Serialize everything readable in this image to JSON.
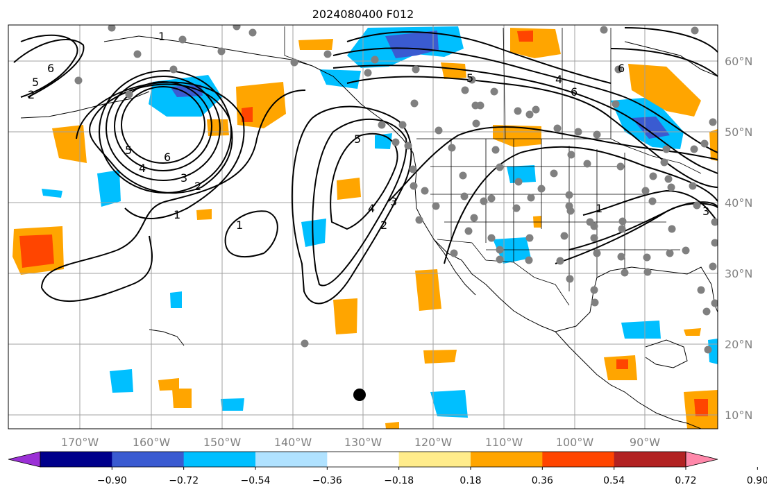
{
  "title": "2024080400 F012",
  "colors": {
    "grid": "#a0a0a0",
    "contour": "#000000",
    "station": "#808080",
    "marker": "#000000",
    "axis_label": "#808080"
  },
  "lon_ticks": [
    "170°W",
    "160°W",
    "150°W",
    "140°W",
    "130°W",
    "120°W",
    "110°W",
    "100°W",
    "90°W"
  ],
  "lat_ticks": [
    "10°N",
    "20°N",
    "30°N",
    "40°N",
    "50°N",
    "60°N"
  ],
  "colorbar": {
    "colors": [
      "#9b30d6",
      "#00008b",
      "#3a5bd1",
      "#00bfff",
      "#b0e2ff",
      "#ffffff",
      "#ffec8b",
      "#ffa500",
      "#ff4500",
      "#b22222",
      "#ff88aa"
    ],
    "labels": [
      "−0.90",
      "−0.72",
      "−0.54",
      "−0.36",
      "−0.18",
      "0.18",
      "0.36",
      "0.54",
      "0.72",
      "0.90"
    ]
  },
  "contour_labels": [
    "1",
    "2",
    "3",
    "4",
    "5",
    "6"
  ]
}
